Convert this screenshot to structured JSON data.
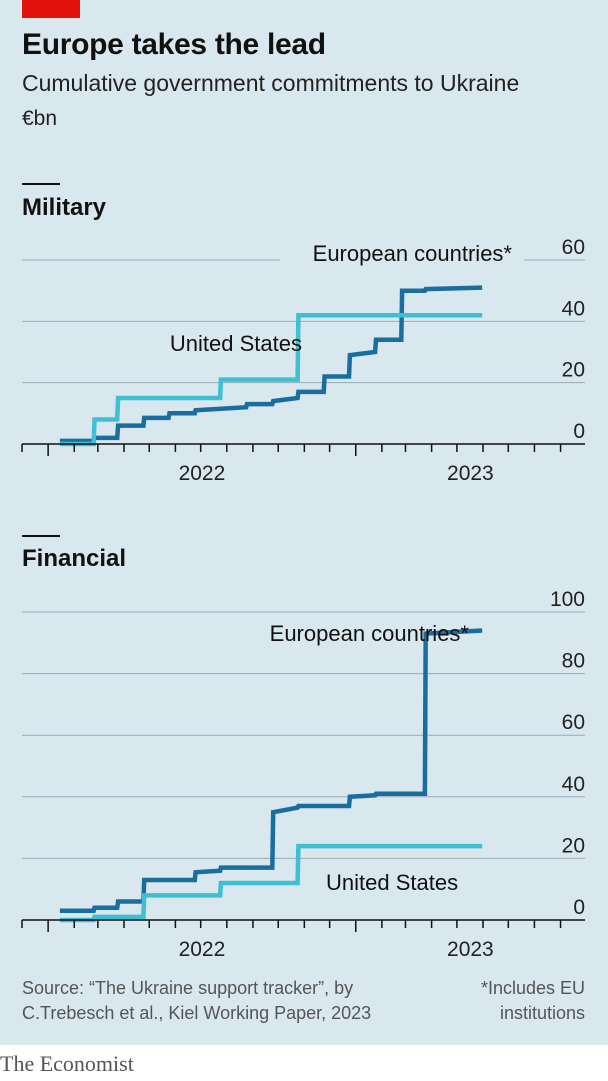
{
  "header": {
    "title": "Europe takes the lead",
    "subtitle": "Cumulative government commitments to Ukraine",
    "unit": "€bn"
  },
  "footer": {
    "source_line1": "Source: “The Ukraine support tracker”, by",
    "source_line2": "C.Trebesch et al., Kiel Working Paper, 2023",
    "footnote_line1": "*Includes EU",
    "footnote_line2": "institutions",
    "brand": "The Economist"
  },
  "colors": {
    "background": "#d9e7ef",
    "europe": "#1a6e9e",
    "united_states": "#3ec0d2",
    "gridline": "#9aaab3",
    "axis": "#111111",
    "brand_red": "#e3120b"
  },
  "chart_data": [
    {
      "type": "line",
      "step": true,
      "title": "Military",
      "ylim": [
        0,
        60
      ],
      "yticks": [
        0,
        20,
        40,
        60
      ],
      "xlim": [
        "2021-12-01",
        "2023-09-30"
      ],
      "x_tick_labels": [
        "2022",
        "2023"
      ],
      "grid": true,
      "series": [
        {
          "name": "European countries*",
          "color": "#1a6e9e",
          "points": [
            [
              "2022-01-15",
              1
            ],
            [
              "2022-02-24",
              1
            ],
            [
              "2022-02-25",
              2
            ],
            [
              "2022-03-24",
              2
            ],
            [
              "2022-03-25",
              6
            ],
            [
              "2022-04-24",
              6
            ],
            [
              "2022-04-25",
              8.5
            ],
            [
              "2022-05-24",
              8.5
            ],
            [
              "2022-05-25",
              10
            ],
            [
              "2022-06-24",
              10
            ],
            [
              "2022-06-25",
              11
            ],
            [
              "2022-08-24",
              12
            ],
            [
              "2022-08-25",
              13
            ],
            [
              "2022-09-24",
              13
            ],
            [
              "2022-09-25",
              14
            ],
            [
              "2022-10-24",
              15
            ],
            [
              "2022-10-25",
              17
            ],
            [
              "2022-11-24",
              17
            ],
            [
              "2022-11-25",
              22
            ],
            [
              "2022-12-24",
              22
            ],
            [
              "2022-12-25",
              29
            ],
            [
              "2023-01-24",
              30
            ],
            [
              "2023-01-25",
              34
            ],
            [
              "2023-02-24",
              34
            ],
            [
              "2023-02-25",
              50
            ],
            [
              "2023-03-24",
              50
            ],
            [
              "2023-03-25",
              50.5
            ],
            [
              "2023-05-31",
              51
            ]
          ]
        },
        {
          "name": "United States",
          "color": "#3ec0d2",
          "points": [
            [
              "2022-01-15",
              0
            ],
            [
              "2022-02-24",
              0
            ],
            [
              "2022-02-25",
              8
            ],
            [
              "2022-03-24",
              8
            ],
            [
              "2022-03-25",
              15
            ],
            [
              "2022-07-24",
              15
            ],
            [
              "2022-07-25",
              21
            ],
            [
              "2022-10-24",
              21
            ],
            [
              "2022-10-25",
              42
            ],
            [
              "2023-05-31",
              42
            ]
          ]
        }
      ],
      "annotations": [
        {
          "text": "European countries*",
          "series": "European countries*"
        },
        {
          "text": "United States",
          "series": "United States"
        }
      ]
    },
    {
      "type": "line",
      "step": true,
      "title": "Financial",
      "ylim": [
        0,
        100
      ],
      "yticks": [
        0,
        20,
        40,
        60,
        80,
        100
      ],
      "xlim": [
        "2021-12-01",
        "2023-09-30"
      ],
      "x_tick_labels": [
        "2022",
        "2023"
      ],
      "grid": true,
      "series": [
        {
          "name": "European countries*",
          "color": "#1a6e9e",
          "points": [
            [
              "2022-01-15",
              3
            ],
            [
              "2022-02-24",
              3
            ],
            [
              "2022-02-25",
              4
            ],
            [
              "2022-03-24",
              4
            ],
            [
              "2022-03-25",
              6
            ],
            [
              "2022-04-24",
              6
            ],
            [
              "2022-04-25",
              13
            ],
            [
              "2022-06-24",
              13
            ],
            [
              "2022-06-25",
              15.5
            ],
            [
              "2022-07-24",
              16
            ],
            [
              "2022-07-25",
              17
            ],
            [
              "2022-09-24",
              17
            ],
            [
              "2022-09-25",
              35
            ],
            [
              "2022-10-24",
              36.5
            ],
            [
              "2022-10-25",
              37
            ],
            [
              "2022-12-24",
              37
            ],
            [
              "2022-12-25",
              40
            ],
            [
              "2023-01-24",
              40.5
            ],
            [
              "2023-01-25",
              41
            ],
            [
              "2023-03-24",
              41
            ],
            [
              "2023-03-25",
              93
            ],
            [
              "2023-05-31",
              94
            ]
          ]
        },
        {
          "name": "United States",
          "color": "#3ec0d2",
          "points": [
            [
              "2022-01-15",
              0
            ],
            [
              "2022-02-24",
              0
            ],
            [
              "2022-02-25",
              1
            ],
            [
              "2022-04-24",
              1
            ],
            [
              "2022-04-25",
              8
            ],
            [
              "2022-07-24",
              8
            ],
            [
              "2022-07-25",
              12
            ],
            [
              "2022-10-24",
              12
            ],
            [
              "2022-10-25",
              24
            ],
            [
              "2023-05-31",
              24
            ]
          ]
        }
      ],
      "annotations": [
        {
          "text": "European countries*",
          "series": "European countries*"
        },
        {
          "text": "United States",
          "series": "United States"
        }
      ]
    }
  ]
}
